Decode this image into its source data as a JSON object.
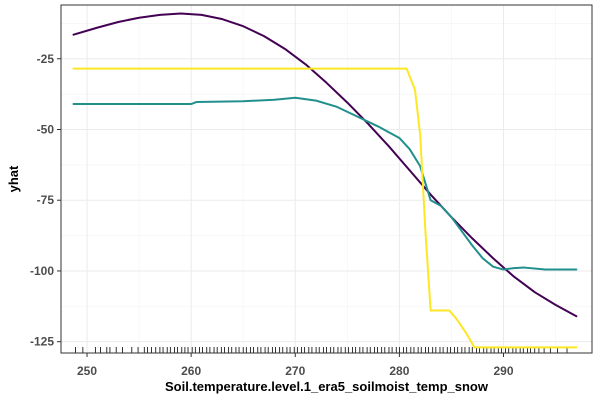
{
  "chart_data": {
    "type": "line",
    "title": "",
    "xlabel": "Soil.temperature.level.1_era5_soilmoist_temp_snow",
    "ylabel": "yhat",
    "xlim": [
      247.5,
      298.5
    ],
    "ylim": [
      -129,
      -6
    ],
    "x_ticks": [
      250,
      260,
      270,
      280,
      290
    ],
    "y_ticks": [
      -25,
      -50,
      -75,
      -100,
      -125
    ],
    "grid": true,
    "legend": "none",
    "series": [
      {
        "color": "#440154",
        "x": [
          248.7,
          251,
          253,
          255,
          257,
          259,
          261,
          263,
          265,
          267,
          269,
          271,
          273,
          275,
          277,
          279,
          281,
          283,
          285,
          287,
          289,
          291,
          293,
          295,
          297
        ],
        "y": [
          -16.5,
          -14,
          -12,
          -10.5,
          -9.5,
          -9,
          -9.5,
          -11,
          -13.5,
          -17,
          -21.5,
          -27,
          -33.5,
          -40.5,
          -48,
          -56,
          -64.5,
          -73,
          -81,
          -88.5,
          -95.5,
          -102,
          -107.5,
          -112,
          -116
        ]
      },
      {
        "color": "#21908C",
        "x": [
          248.7,
          255,
          260,
          260.5,
          265,
          268,
          270,
          272,
          274,
          276,
          278,
          280,
          281,
          282,
          283,
          284,
          285,
          286,
          287,
          288,
          289,
          290,
          291,
          292,
          294,
          297
        ],
        "y": [
          -41,
          -41,
          -41,
          -40.3,
          -40,
          -39.5,
          -38.8,
          -39.8,
          -42,
          -45.5,
          -49,
          -53,
          -57,
          -63,
          -75,
          -77,
          -81,
          -86,
          -91,
          -95.5,
          -98.5,
          -99.5,
          -99,
          -98.8,
          -99.5,
          -99.5
        ]
      },
      {
        "color": "#FDE725",
        "x": [
          248.7,
          255,
          260,
          265,
          270,
          275,
          280,
          280.7,
          281.5,
          282,
          282.5,
          283,
          284,
          284.8,
          285.5,
          286.5,
          287.2,
          290,
          295,
          297
        ],
        "y": [
          -28.5,
          -28.5,
          -28.5,
          -28.5,
          -28.5,
          -28.5,
          -28.5,
          -28.5,
          -36,
          -52,
          -86,
          -114,
          -114,
          -114,
          -117,
          -122.5,
          -127,
          -127,
          -127,
          -127
        ]
      }
    ],
    "rug": [
      248.9,
      249.6,
      250.8,
      251.3,
      251.9,
      252.2,
      252.8,
      253.4,
      254.3,
      254.9,
      255.5,
      255.8,
      256.2,
      256.6,
      257,
      257.3,
      257.7,
      258,
      258.4,
      258.7,
      259.1,
      259.4,
      259.7,
      260.1,
      260.4,
      260.8,
      261.1,
      261.5,
      261.8,
      262.2,
      262.5,
      262.9,
      263.2,
      263.6,
      263.9,
      264.3,
      264.6,
      265,
      265.3,
      265.7,
      266,
      266.4,
      266.7,
      267.1,
      267.4,
      267.8,
      268.1,
      268.5,
      268.8,
      269.2,
      269.5,
      269.9,
      270.2,
      270.6,
      270.9,
      271.3,
      271.6,
      272,
      272.3,
      272.7,
      273,
      273.4,
      273.7,
      274.1,
      274.4,
      274.8,
      275.1,
      275.5,
      275.8,
      276.2,
      276.5,
      276.9,
      277.2,
      277.6,
      277.9,
      278.3,
      278.6,
      279,
      279.3,
      279.7,
      280,
      280.4,
      280.7,
      281.1,
      281.4,
      281.8,
      282.1,
      282.5,
      282.8,
      283.2,
      283.5,
      283.9,
      284.2,
      284.6,
      284.9,
      285.3,
      285.6,
      286,
      286.3,
      286.7,
      287,
      287.4,
      287.7,
      288.1,
      288.4,
      288.8,
      289.1,
      289.5,
      289.8,
      290.2,
      290.5,
      290.9,
      291.2,
      291.6,
      291.9,
      292.3,
      292.6,
      293,
      293.4,
      293.9,
      294.5,
      295.2,
      296.1
    ]
  }
}
